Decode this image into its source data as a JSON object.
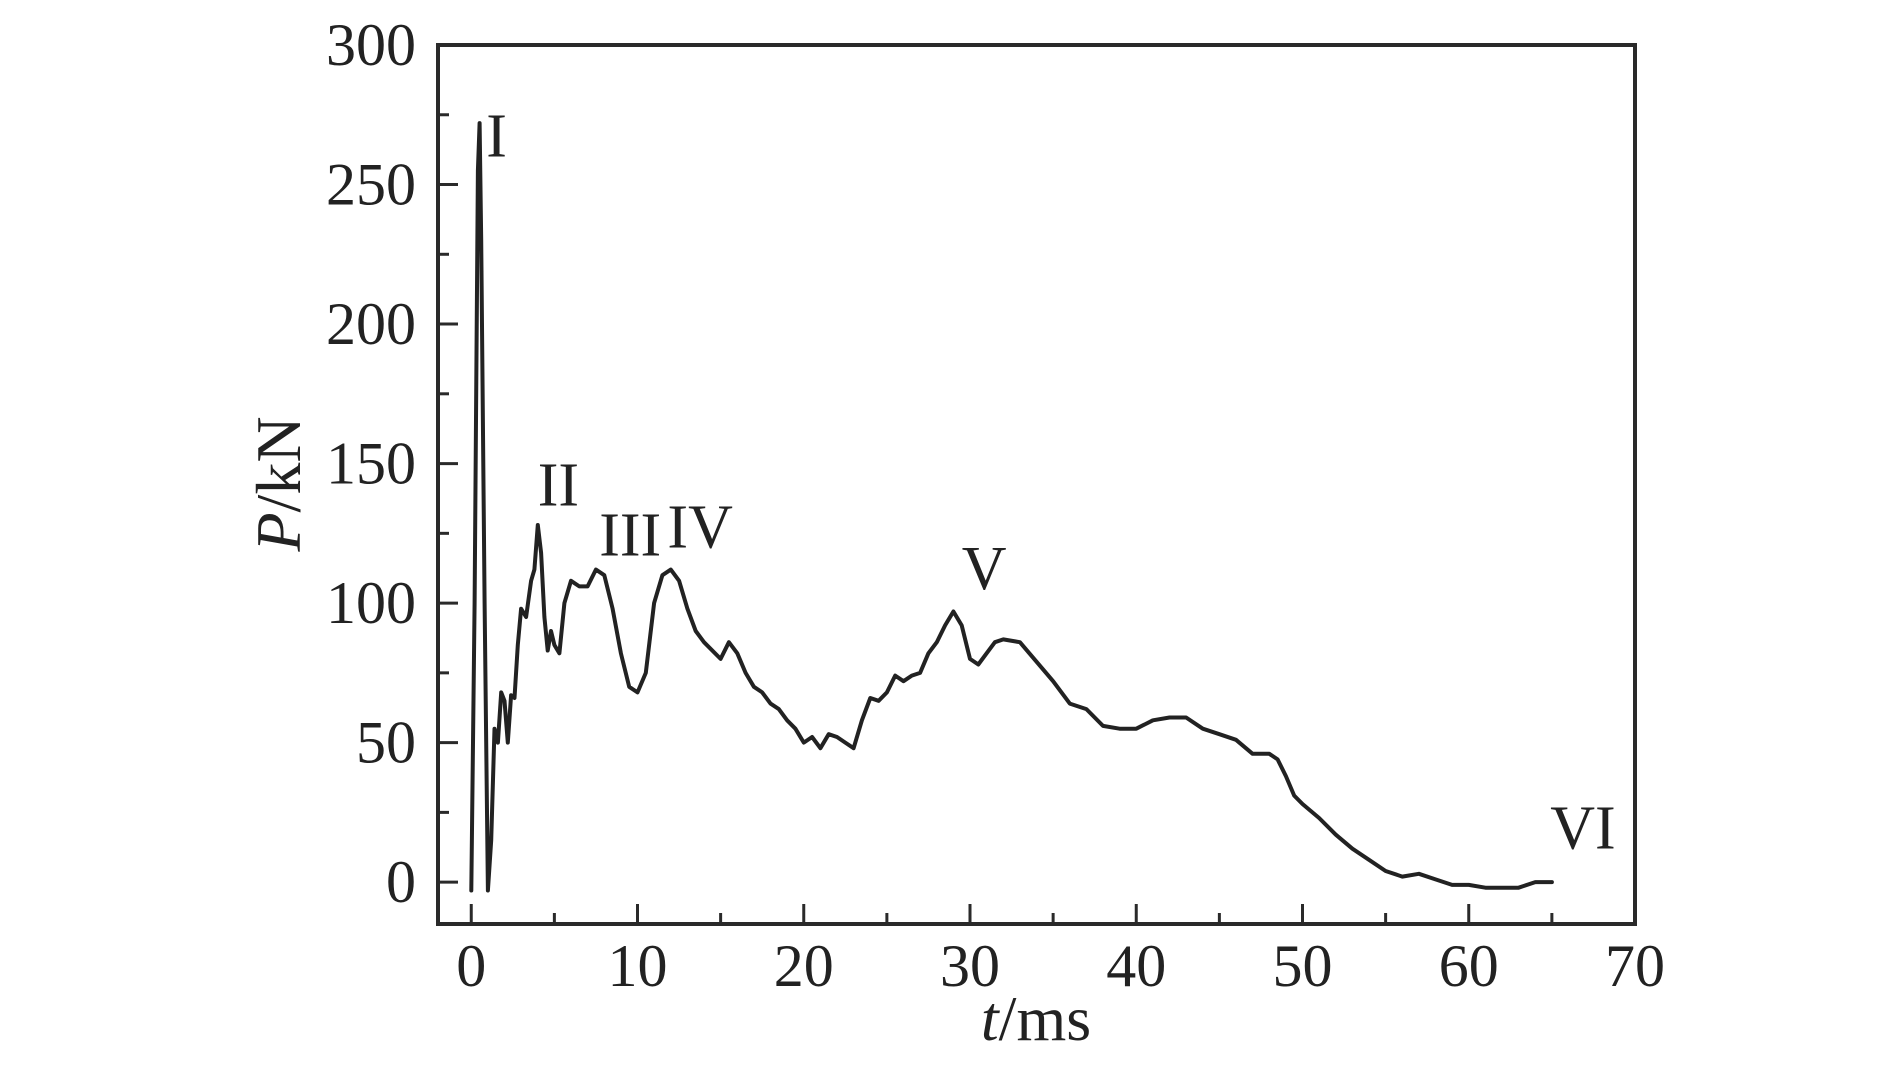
{
  "chart_data": {
    "type": "line",
    "title": "",
    "xlabel_var": "t",
    "xlabel_unit": "/ms",
    "ylabel_var": "P",
    "ylabel_unit": "/kN",
    "xlim": [
      -2,
      70
    ],
    "ylim": [
      -15,
      300
    ],
    "xticks": [
      0,
      10,
      20,
      30,
      40,
      50,
      60,
      70
    ],
    "yticks": [
      0,
      50,
      100,
      150,
      200,
      250,
      300
    ],
    "xminor": [
      5,
      15,
      25,
      35,
      45,
      55,
      65
    ],
    "yminor": [
      25,
      75,
      125,
      175,
      225,
      275
    ],
    "grid": false,
    "series": [
      {
        "name": "",
        "x": [
          0,
          0.2,
          0.4,
          0.5,
          0.6,
          0.8,
          1.0,
          1.2,
          1.4,
          1.6,
          1.8,
          2.0,
          2.2,
          2.4,
          2.6,
          2.8,
          3.0,
          3.3,
          3.6,
          3.8,
          4.0,
          4.2,
          4.4,
          4.6,
          4.8,
          5.0,
          5.3,
          5.6,
          6.0,
          6.5,
          7.0,
          7.5,
          8.0,
          8.5,
          9.0,
          9.5,
          10.0,
          10.5,
          11.0,
          11.5,
          12.0,
          12.5,
          13.0,
          13.5,
          14.0,
          15.0,
          15.5,
          16.0,
          16.5,
          17.0,
          17.5,
          18.0,
          18.5,
          19.0,
          19.5,
          20.0,
          20.5,
          21.0,
          21.5,
          22.0,
          22.5,
          23.0,
          23.5,
          24.0,
          24.5,
          25.0,
          25.5,
          26.0,
          26.5,
          27.0,
          27.5,
          28.0,
          28.5,
          29.0,
          29.5,
          30.0,
          30.5,
          31.0,
          31.5,
          32.0,
          33.0,
          34.0,
          35.0,
          36.0,
          37.0,
          38.0,
          39.0,
          40.0,
          41.0,
          42.0,
          43.0,
          44.0,
          45.0,
          46.0,
          47.0,
          48.0,
          48.5,
          49.0,
          49.5,
          50.0,
          51.0,
          52.0,
          53.0,
          54.0,
          55.0,
          56.0,
          57.0,
          58.0,
          59.0,
          60.0,
          61.0,
          62.0,
          63.0,
          64.0,
          65.0
        ],
        "values": [
          -3,
          100,
          255,
          272,
          230,
          100,
          -3,
          15,
          55,
          50,
          68,
          65,
          50,
          67,
          66,
          85,
          98,
          95,
          108,
          112,
          128,
          118,
          95,
          83,
          90,
          85,
          82,
          100,
          108,
          106,
          106,
          112,
          110,
          98,
          82,
          70,
          68,
          75,
          100,
          110,
          112,
          108,
          98,
          90,
          86,
          80,
          86,
          82,
          75,
          70,
          68,
          64,
          62,
          58,
          55,
          50,
          52,
          48,
          53,
          52,
          50,
          48,
          58,
          66,
          65,
          68,
          74,
          72,
          74,
          75,
          82,
          86,
          92,
          97,
          92,
          80,
          78,
          82,
          86,
          87,
          86,
          79,
          72,
          64,
          62,
          56,
          55,
          55,
          58,
          59,
          59,
          55,
          53,
          51,
          46,
          46,
          44,
          38,
          31,
          28,
          23,
          17,
          12,
          8,
          4,
          2,
          3,
          1,
          -1,
          -1,
          -2,
          -2,
          -2,
          0,
          0
        ]
      }
    ],
    "annotations": [
      {
        "text": "I",
        "x": 0.9,
        "y": 260
      },
      {
        "text": "II",
        "x": 4.0,
        "y": 135
      },
      {
        "text": "III",
        "x": 7.7,
        "y": 117
      },
      {
        "text": "IV",
        "x": 11.8,
        "y": 120
      },
      {
        "text": "V",
        "x": 29.5,
        "y": 105
      },
      {
        "text": "VI",
        "x": 64.9,
        "y": 12
      }
    ]
  }
}
